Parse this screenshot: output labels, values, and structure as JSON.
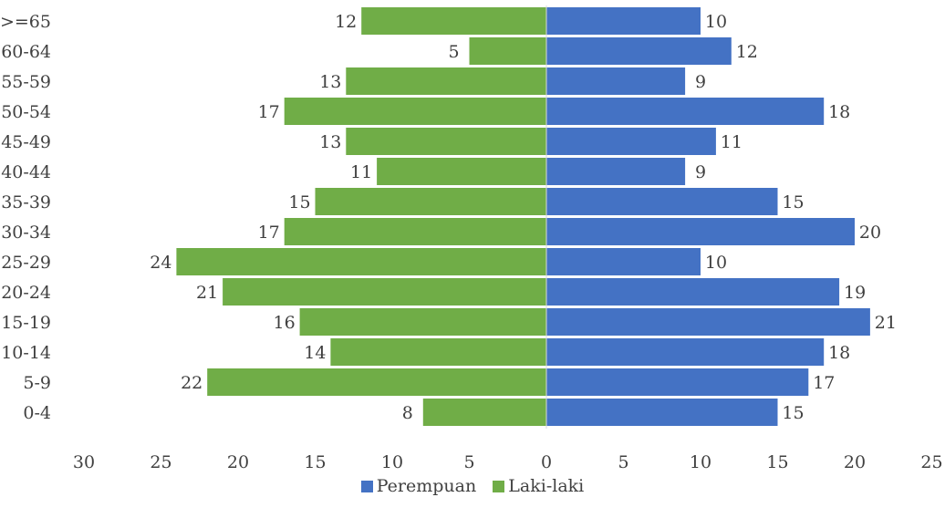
{
  "chart_data": {
    "type": "bar",
    "orientation": "horizontal",
    "layout": "population-pyramid",
    "categories": [
      "0-4",
      "5-9",
      "10-14",
      "15-19",
      "20-24",
      "25-29",
      "30-34",
      "35-39",
      "40-44",
      "45-49",
      "50-54",
      "55-59",
      "60-64",
      ">=65"
    ],
    "series": [
      {
        "name": "Perempuan",
        "color": "#4472c4",
        "side": "right",
        "values": [
          15,
          17,
          18,
          21,
          19,
          10,
          20,
          15,
          9,
          11,
          18,
          9,
          12,
          10
        ]
      },
      {
        "name": "Laki-laki",
        "color": "#70ad47",
        "side": "left",
        "values": [
          8,
          22,
          14,
          16,
          21,
          24,
          17,
          15,
          11,
          13,
          17,
          13,
          5,
          12
        ]
      }
    ],
    "x_ticks": [
      "30",
      "25",
      "20",
      "15",
      "10",
      "5",
      "0",
      "5",
      "10",
      "15",
      "20",
      "25"
    ],
    "xlim": [
      -30,
      25
    ],
    "grid": false,
    "legend_position": "bottom",
    "data_labels": true
  }
}
